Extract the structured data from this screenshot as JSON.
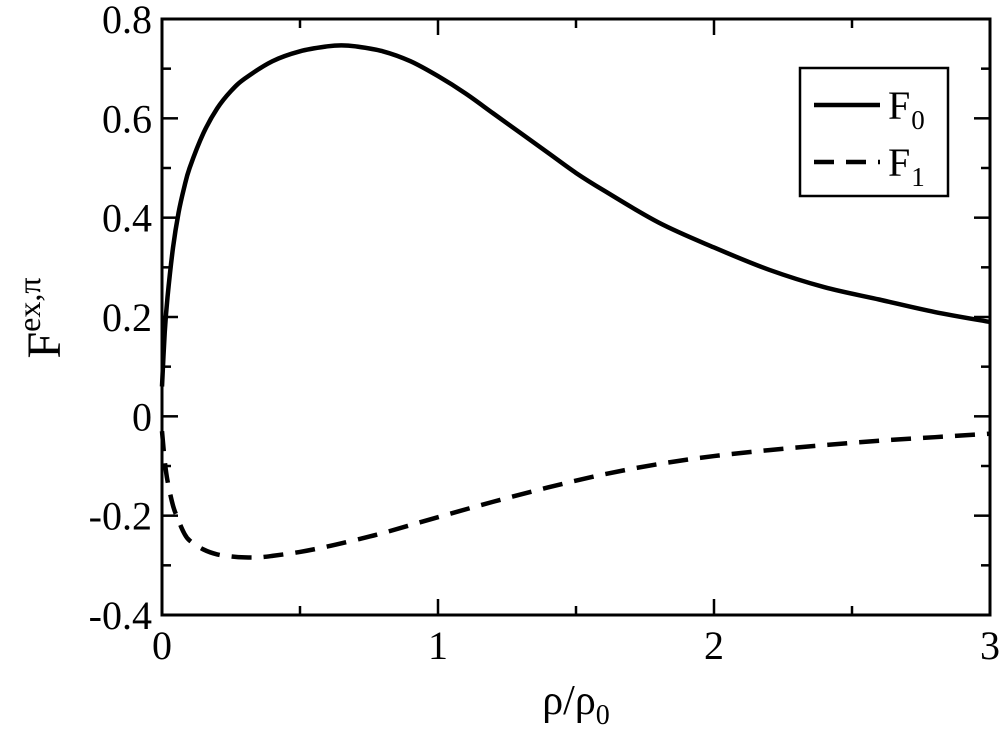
{
  "chart_data": {
    "type": "line",
    "xlabel": {
      "base": "ρ/ρ",
      "sub": "0"
    },
    "ylabel": {
      "base": "F",
      "sup": "ex,π"
    },
    "xlim": [
      0,
      3
    ],
    "ylim": [
      -0.4,
      0.8
    ],
    "xticks": [
      0,
      1,
      2,
      3
    ],
    "xtick_labels": [
      "0",
      "1",
      "2",
      "3"
    ],
    "yticks": [
      -0.4,
      -0.2,
      0,
      0.2,
      0.4,
      0.6,
      0.8
    ],
    "ytick_labels": [
      "-0.4",
      "-0.2",
      "0",
      "0.2",
      "0.4",
      "0.6",
      "0.8"
    ],
    "grid": false,
    "legend_position": "top-right",
    "series": [
      {
        "name": "F0",
        "label_base": "F",
        "label_sub": "0",
        "line_style": "solid",
        "color": "#000000",
        "x": [
          0.0,
          0.01,
          0.02,
          0.04,
          0.06,
          0.08,
          0.1,
          0.15,
          0.2,
          0.25,
          0.3,
          0.4,
          0.5,
          0.6,
          0.65,
          0.7,
          0.8,
          0.9,
          1.0,
          1.1,
          1.2,
          1.3,
          1.4,
          1.5,
          1.6,
          1.8,
          2.0,
          2.2,
          2.4,
          2.6,
          2.8,
          3.0
        ],
        "y": [
          0.06,
          0.17,
          0.24,
          0.34,
          0.41,
          0.46,
          0.5,
          0.57,
          0.62,
          0.655,
          0.68,
          0.715,
          0.735,
          0.745,
          0.747,
          0.745,
          0.735,
          0.715,
          0.685,
          0.65,
          0.61,
          0.57,
          0.53,
          0.49,
          0.455,
          0.39,
          0.34,
          0.295,
          0.26,
          0.235,
          0.21,
          0.19
        ]
      },
      {
        "name": "F1",
        "label_base": "F",
        "label_sub": "1",
        "line_style": "dashed",
        "color": "#000000",
        "x": [
          0.0,
          0.01,
          0.02,
          0.04,
          0.06,
          0.08,
          0.1,
          0.15,
          0.2,
          0.25,
          0.3,
          0.35,
          0.4,
          0.5,
          0.6,
          0.7,
          0.8,
          1.0,
          1.2,
          1.4,
          1.6,
          1.8,
          2.0,
          2.2,
          2.4,
          2.6,
          2.8,
          3.0
        ],
        "y": [
          -0.03,
          -0.09,
          -0.13,
          -0.18,
          -0.21,
          -0.235,
          -0.25,
          -0.268,
          -0.278,
          -0.282,
          -0.284,
          -0.284,
          -0.281,
          -0.273,
          -0.262,
          -0.249,
          -0.235,
          -0.203,
          -0.172,
          -0.143,
          -0.117,
          -0.096,
          -0.08,
          -0.068,
          -0.058,
          -0.049,
          -0.042,
          -0.035
        ]
      }
    ]
  }
}
